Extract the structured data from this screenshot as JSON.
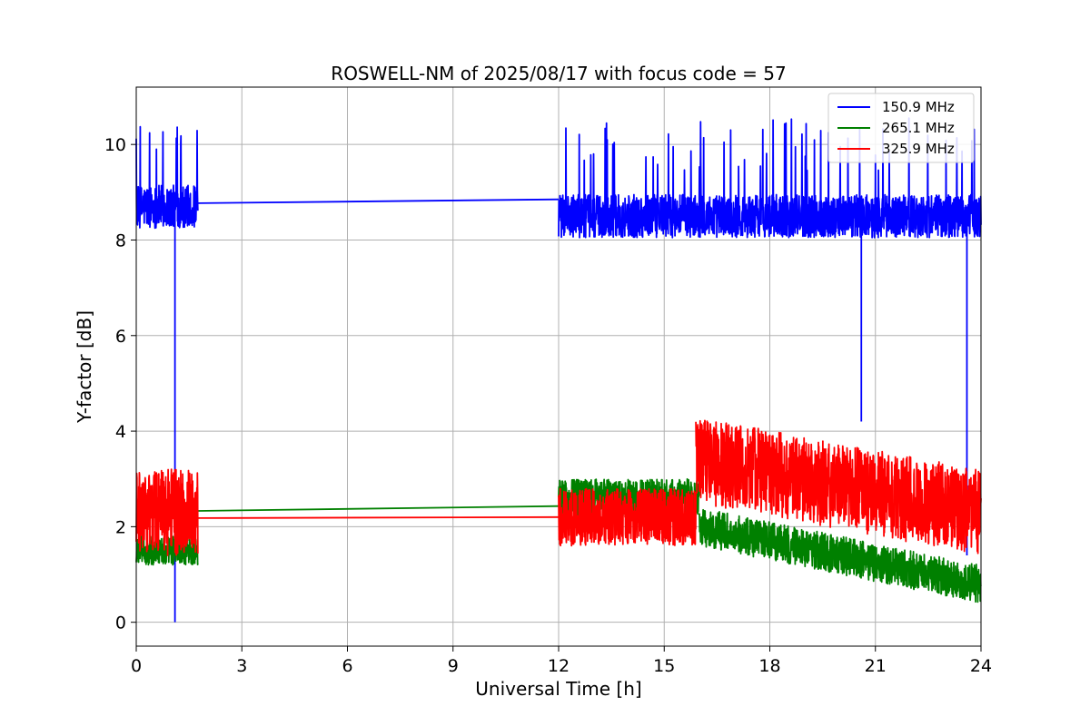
{
  "chart_data": {
    "type": "line",
    "title": "ROSWELL-NM of 2025/08/17 with focus code = 57",
    "xlabel": "Universal Time [h]",
    "ylabel": "Y-factor [dB]",
    "xlim": [
      0,
      24
    ],
    "ylim": [
      -0.5,
      11.2
    ],
    "xticks": [
      0,
      3,
      6,
      9,
      12,
      15,
      18,
      21,
      24
    ],
    "yticks": [
      0,
      2,
      4,
      6,
      8,
      10
    ],
    "grid": true,
    "legend_position": "top-right",
    "series": [
      {
        "name": "150.9 MHz",
        "color": "#0000ff",
        "segments": [
          {
            "x_start": 0.0,
            "x_end": 1.75,
            "mean": 8.7,
            "noise": 0.45,
            "spike_max": 10.6
          },
          {
            "x_start": 12.0,
            "x_end": 24.0,
            "mean": 8.5,
            "noise": 0.45,
            "spike_max": 10.6
          }
        ],
        "gap_line": [
          [
            1.75,
            8.77
          ],
          [
            12.0,
            8.85
          ]
        ],
        "dropouts": [
          [
            1.1,
            0.0
          ],
          [
            20.6,
            4.2
          ],
          [
            23.6,
            1.4
          ]
        ]
      },
      {
        "name": "265.1 MHz",
        "color": "#008000",
        "segments": [
          {
            "x_start": 0.0,
            "x_end": 1.75,
            "mean": 1.5,
            "noise": 0.3
          },
          {
            "x_start": 12.0,
            "x_end": 16.0,
            "mean": 2.6,
            "noise": 0.4
          },
          {
            "x_start": 16.0,
            "x_end": 24.0,
            "mean_start": 2.0,
            "mean_end": 0.8,
            "noise": 0.4
          }
        ],
        "gap_line": [
          [
            1.75,
            2.33
          ],
          [
            12.0,
            2.43
          ]
        ]
      },
      {
        "name": "325.9 MHz",
        "color": "#ff0000",
        "segments": [
          {
            "x_start": 0.0,
            "x_end": 1.75,
            "mean": 2.3,
            "noise": 0.9
          },
          {
            "x_start": 12.0,
            "x_end": 15.9,
            "mean": 2.2,
            "noise": 0.6
          },
          {
            "x_start": 15.9,
            "x_end": 24.0,
            "mean_start": 3.4,
            "mean_end": 2.3,
            "noise": 0.9
          }
        ],
        "gap_line": [
          [
            1.75,
            2.18
          ],
          [
            12.0,
            2.2
          ]
        ]
      }
    ]
  }
}
